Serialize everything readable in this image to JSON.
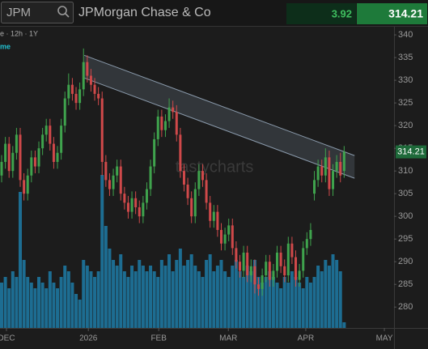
{
  "header": {
    "symbol": "JPM",
    "company": "JPMorgan Chase & Co",
    "change": "3.92",
    "last_price": "314.21"
  },
  "toolbar": {
    "settings": "e · 12h · 1Y",
    "study": "me"
  },
  "chart_data": {
    "type": "candlestick",
    "watermark": "tastycharts",
    "up_color": "#3fa34d",
    "down_color": "#d0494a",
    "volume_color": "#1d6d92",
    "xlim": [
      -0.435,
      105.4
    ],
    "xticks": [
      {
        "value": 1.3,
        "label": "DEC"
      },
      {
        "value": 23.3,
        "label": "2026"
      },
      {
        "value": 42.2,
        "label": "FEB"
      },
      {
        "value": 60.9,
        "label": "MAR"
      },
      {
        "value": 81.7,
        "label": "APR"
      },
      {
        "value": 102.8,
        "label": "MAY"
      }
    ],
    "ylim": [
      275.4,
      341.8
    ],
    "yticks": [
      280,
      285,
      290,
      295,
      300,
      305,
      310,
      315,
      320,
      325,
      330,
      335,
      340
    ],
    "open": [
      309,
      312,
      316,
      310,
      314,
      318,
      308,
      305,
      309,
      313,
      311,
      315,
      318,
      320,
      316,
      312,
      314,
      320,
      326,
      329,
      327,
      325,
      328,
      334,
      331,
      329,
      327,
      326,
      312,
      308,
      306,
      309,
      311,
      305,
      303,
      301,
      304,
      302,
      300,
      303,
      306,
      311,
      317,
      322,
      319,
      321,
      324,
      323,
      318,
      310,
      307,
      304,
      300,
      306,
      310,
      308,
      303,
      299,
      301,
      297,
      294,
      296,
      298,
      293,
      290,
      288,
      292,
      287,
      289,
      285,
      284,
      287,
      290,
      286,
      288,
      292,
      289,
      287,
      294,
      291,
      286,
      288,
      293,
      295,
      305,
      308,
      311,
      309,
      313,
      306,
      310,
      312,
      310
    ],
    "high": [
      313.5,
      317.5,
      317.5,
      315.5,
      319.5,
      319.5,
      309.5,
      310.5,
      314.5,
      314.5,
      316.5,
      319.5,
      321.5,
      321.5,
      317.5,
      315.5,
      321.5,
      327.5,
      331.5,
      330.5,
      328.5,
      329.5,
      337,
      335.5,
      332.5,
      330.5,
      328.5,
      327.5,
      313.5,
      309.5,
      310.5,
      312.5,
      312.5,
      306.5,
      304.5,
      305.5,
      305.5,
      303.5,
      304.5,
      307.5,
      312.5,
      318.5,
      323.5,
      323.5,
      322.5,
      326,
      325.5,
      324.5,
      319.5,
      311.5,
      308.5,
      305.5,
      307.5,
      311.5,
      311.5,
      309.5,
      304.5,
      302.5,
      302.5,
      298.5,
      297.5,
      299.5,
      299.5,
      294.5,
      291.5,
      293.5,
      293.5,
      290.5,
      290.5,
      286.5,
      288.5,
      291.5,
      291.5,
      289.5,
      293.5,
      293.5,
      290.5,
      295.5,
      295.5,
      292.5,
      289.5,
      294.5,
      296.5,
      298.5,
      310,
      312.5,
      312.5,
      315,
      314.5,
      311.5,
      313.5,
      314,
      315.5
    ],
    "low": [
      307.5,
      310.5,
      308.5,
      308.5,
      312.5,
      306.5,
      303.5,
      303.5,
      307.5,
      309.5,
      309.5,
      313.5,
      316.5,
      314.5,
      310.5,
      310.5,
      312.5,
      318.5,
      324.5,
      325.5,
      323.5,
      323.5,
      326.5,
      329.5,
      327.5,
      325.5,
      324.5,
      309,
      306.5,
      304.5,
      304.5,
      307.5,
      303.5,
      301.5,
      299.5,
      299.5,
      300.5,
      298.5,
      298.5,
      301.5,
      304.5,
      309.5,
      315.5,
      317.5,
      317.5,
      319.5,
      321.5,
      316.5,
      308.5,
      305.5,
      302.5,
      298.5,
      298.5,
      304.5,
      306.5,
      301.5,
      297.5,
      297.5,
      295.5,
      292.5,
      292.5,
      294.5,
      291.5,
      288.5,
      286.5,
      286.5,
      285.5,
      285.5,
      283,
      282.5,
      282.5,
      285.5,
      284.5,
      284.5,
      286.5,
      287.5,
      285.5,
      285.5,
      289.5,
      284.5,
      284.5,
      286.5,
      291.5,
      293.5,
      303.5,
      306.5,
      307.5,
      307.5,
      304.5,
      304.5,
      308.5,
      307.5,
      308.5
    ],
    "close": [
      312,
      316,
      310,
      314,
      318,
      308,
      305,
      309,
      313,
      311,
      315,
      318,
      320,
      316,
      312,
      314,
      320,
      326,
      329,
      327,
      325,
      328,
      334,
      331,
      329,
      327,
      326,
      312,
      308,
      306,
      309,
      311,
      305,
      303,
      301,
      304,
      302,
      300,
      303,
      306,
      311,
      317,
      322,
      319,
      321,
      324,
      323,
      318,
      310,
      307,
      304,
      300,
      306,
      310,
      308,
      303,
      299,
      301,
      297,
      294,
      296,
      298,
      293,
      290,
      288,
      292,
      287,
      289,
      285,
      284,
      287,
      290,
      286,
      288,
      292,
      289,
      287,
      294,
      291,
      286,
      288,
      293,
      295,
      297,
      308,
      311,
      309,
      313,
      306,
      310,
      312,
      309,
      314.21
    ],
    "volume": [
      8,
      9,
      7,
      10,
      9,
      24,
      12,
      9,
      8,
      7,
      9,
      8,
      7,
      10,
      8,
      7,
      9,
      11,
      10,
      8,
      6,
      5,
      12,
      11,
      10,
      9,
      10,
      27,
      18,
      14,
      12,
      11,
      13,
      10,
      9,
      11,
      10,
      12,
      11,
      10,
      11,
      10,
      9,
      12,
      11,
      13,
      10,
      12,
      14,
      11,
      12,
      13,
      11,
      10,
      9,
      12,
      13,
      10,
      11,
      12,
      10,
      9,
      11,
      12,
      10,
      9,
      11,
      10,
      12,
      9,
      8,
      9,
      10,
      9,
      8,
      7,
      9,
      8,
      10,
      9,
      8,
      7,
      9,
      8,
      9,
      11,
      10,
      12,
      11,
      13,
      12,
      10,
      1
    ],
    "channel": {
      "upper": [
        [
          22.2,
          335.5
        ],
        [
          94.8,
          313.4
        ]
      ],
      "lower": [
        [
          22.2,
          330.5
        ],
        [
          94.8,
          308.4
        ]
      ]
    }
  }
}
